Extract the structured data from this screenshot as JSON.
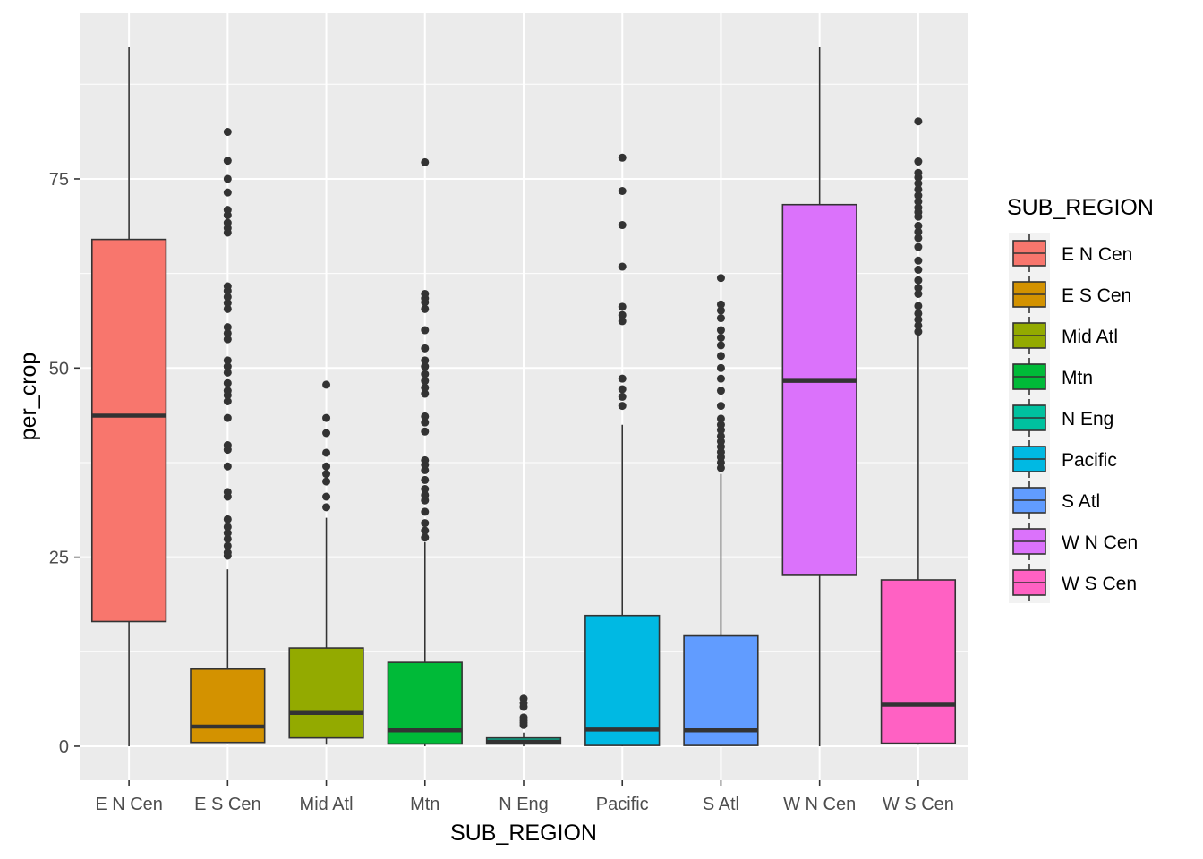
{
  "chart_data": {
    "type": "boxplot",
    "xlabel": "SUB_REGION",
    "ylabel": "per_crop",
    "ylim": [
      -4.5,
      97
    ],
    "yticks": [
      0,
      25,
      50,
      75
    ],
    "grid": true,
    "legend": {
      "title": "SUB_REGION",
      "position": "right"
    },
    "categories": [
      "E N Cen",
      "E S Cen",
      "Mid Atl",
      "Mtn",
      "N Eng",
      "Pacific",
      "S Atl",
      "W N Cen",
      "W S Cen"
    ],
    "colors": [
      "#F8766D",
      "#D39200",
      "#93AA00",
      "#00BA38",
      "#00C19F",
      "#00B9E3",
      "#619CFF",
      "#DB72FB",
      "#FF61C3"
    ],
    "boxes": [
      {
        "category": "E N Cen",
        "whisker_low": 0,
        "q1": 16.5,
        "median": 43.7,
        "q3": 67.0,
        "whisker_high": 92.5,
        "outliers": []
      },
      {
        "category": "E S Cen",
        "whisker_low": 0.4,
        "q1": 0.5,
        "median": 2.6,
        "q3": 10.2,
        "whisker_high": 23.4,
        "outliers": [
          25.2,
          25.6,
          26.5,
          27.4,
          28.2,
          29.0,
          30.0,
          33.0,
          33.6,
          37.0,
          39.2,
          39.8,
          43.4,
          45.6,
          46.4,
          47.0,
          48.0,
          49.4,
          50.2,
          51.0,
          53.8,
          54.6,
          55.4,
          57.8,
          58.6,
          59.4,
          60.2,
          60.8,
          67.9,
          68.5,
          69.2,
          70.2,
          70.9,
          73.2,
          75.0,
          77.4,
          81.2
        ]
      },
      {
        "category": "Mid Atl",
        "whisker_low": 0.2,
        "q1": 1.1,
        "median": 4.4,
        "q3": 13.0,
        "whisker_high": 30.2,
        "outliers": [
          31.6,
          33.0,
          35.0,
          36.0,
          37.0,
          38.8,
          41.4,
          43.4,
          47.8
        ]
      },
      {
        "category": "Mtn",
        "whisker_low": 0,
        "q1": 0.3,
        "median": 2.1,
        "q3": 11.1,
        "whisker_high": 27.0,
        "outliers": [
          27.6,
          28.5,
          29.5,
          31.0,
          32.5,
          33.2,
          34.0,
          35.2,
          36.5,
          37.2,
          37.8,
          41.6,
          42.8,
          43.6,
          46.6,
          47.4,
          48.3,
          49.2,
          50.2,
          51.0,
          52.6,
          55.0,
          57.8,
          58.7,
          59.2,
          59.8,
          77.2
        ]
      },
      {
        "category": "N Eng",
        "whisker_low": 0,
        "q1": 0.3,
        "median": 0.6,
        "q3": 1.1,
        "whisker_high": 1.8,
        "outliers": [
          2.8,
          3.1,
          3.4,
          3.8,
          5.2,
          5.7,
          6.3
        ]
      },
      {
        "category": "Pacific",
        "whisker_low": 0,
        "q1": 0.1,
        "median": 2.2,
        "q3": 17.3,
        "whisker_high": 42.5,
        "outliers": [
          45.0,
          46.2,
          47.2,
          48.6,
          56.2,
          57.0,
          58.1,
          63.4,
          68.9,
          73.4,
          77.8
        ]
      },
      {
        "category": "S Atl",
        "whisker_low": 0,
        "q1": 0.1,
        "median": 2.1,
        "q3": 14.6,
        "whisker_high": 36.0,
        "outliers": [
          36.8,
          37.5,
          38.2,
          38.9,
          39.6,
          40.3,
          41.0,
          41.8,
          42.5,
          43.3,
          45.0,
          47.0,
          48.6,
          50.0,
          51.6,
          53.0,
          54.0,
          55.0,
          56.6,
          57.6,
          58.4,
          61.9
        ]
      },
      {
        "category": "W N Cen",
        "whisker_low": 0,
        "q1": 22.6,
        "median": 48.3,
        "q3": 71.6,
        "whisker_high": 92.5,
        "outliers": []
      },
      {
        "category": "W S Cen",
        "whisker_low": 0.2,
        "q1": 0.4,
        "median": 5.5,
        "q3": 22.0,
        "whisker_high": 54.2,
        "outliers": [
          54.8,
          55.6,
          56.4,
          57.2,
          58.2,
          59.8,
          60.6,
          61.6,
          63.0,
          64.2,
          66.0,
          67.2,
          68.0,
          68.8,
          70.0,
          70.6,
          71.2,
          72.0,
          72.8,
          73.6,
          74.4,
          75.2,
          75.8,
          77.3,
          82.6
        ]
      }
    ]
  }
}
